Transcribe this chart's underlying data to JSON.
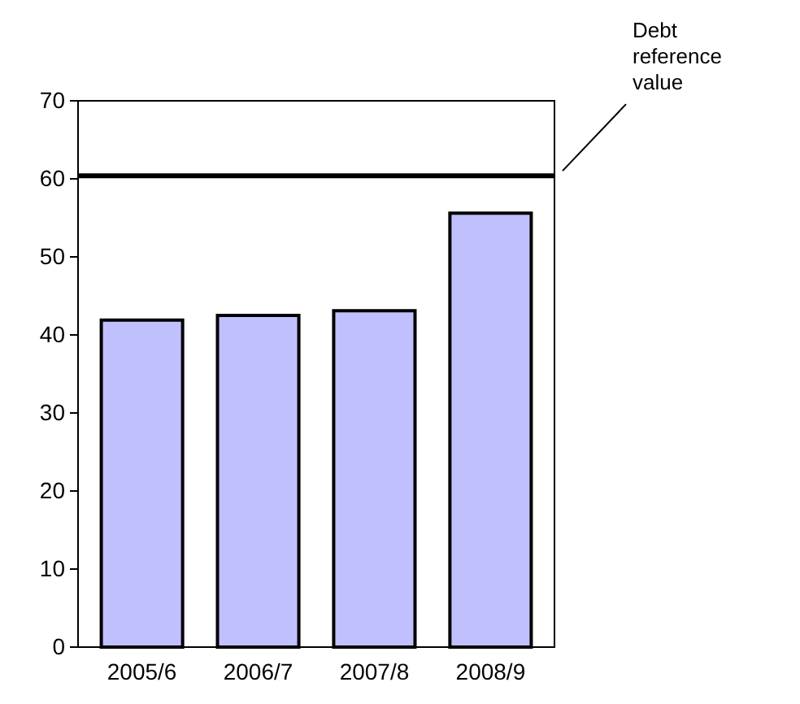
{
  "chart_data": {
    "type": "bar",
    "categories": [
      "2005/6",
      "2006/7",
      "2007/8",
      "2008/9"
    ],
    "values": [
      41.9,
      42.5,
      43.1,
      55.6
    ],
    "color": "#c0c0ff",
    "ylim": [
      0,
      70
    ],
    "yticks": [
      0,
      10,
      20,
      30,
      40,
      50,
      60,
      70
    ],
    "grid": false,
    "ref_lines": [
      {
        "axis": "y",
        "value": 60.4,
        "label": "Debt reference value",
        "color": "#000000"
      }
    ]
  }
}
